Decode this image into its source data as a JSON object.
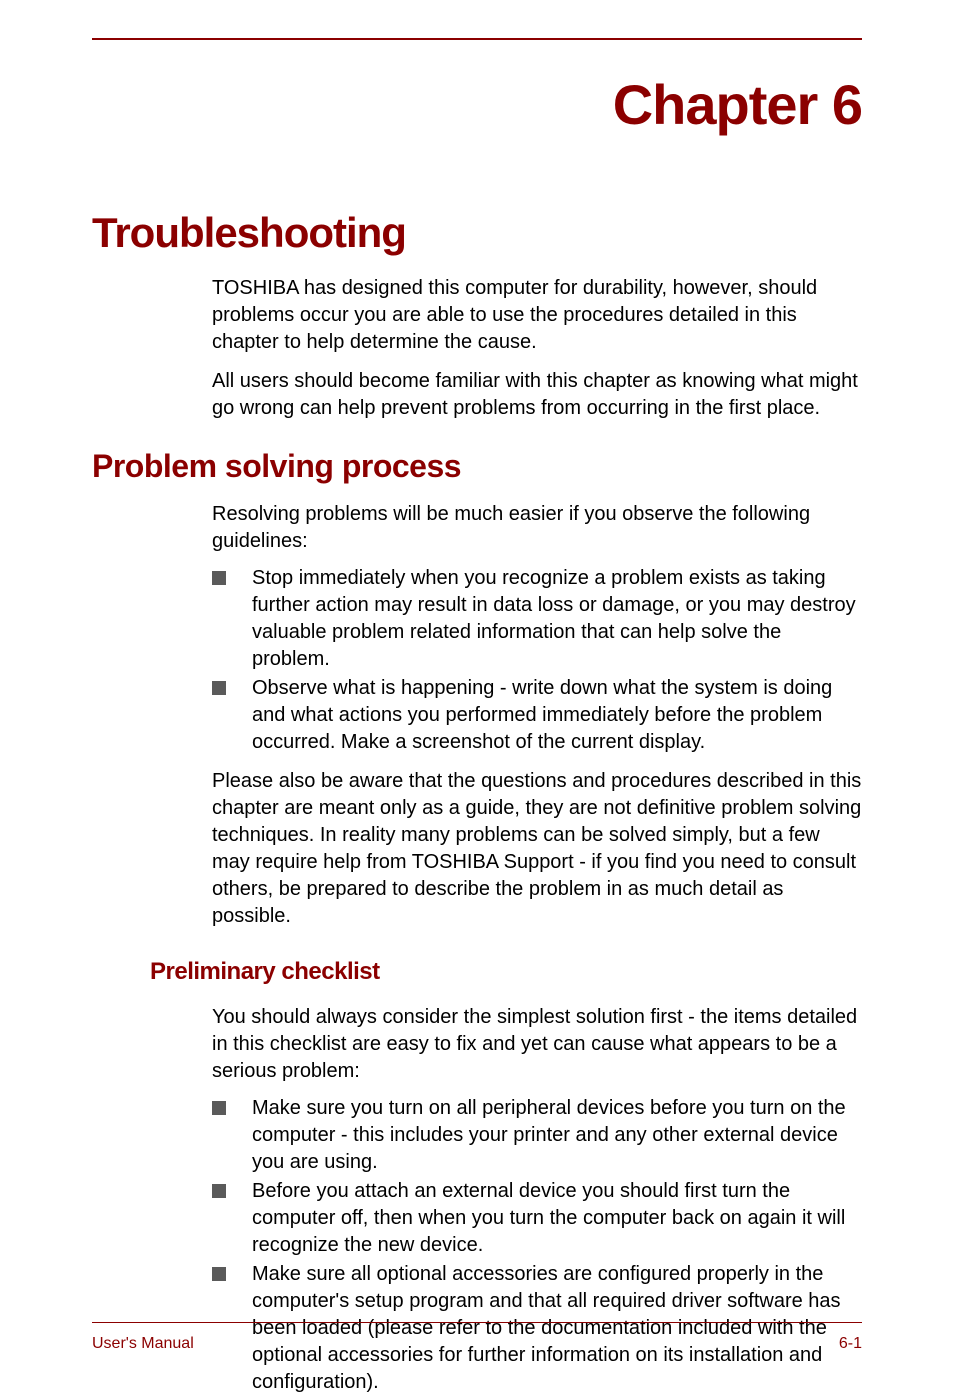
{
  "colors": {
    "heading": "#8b0000",
    "body_text": "#000000",
    "bullet_marker": "#5a5a5a",
    "rule": "#8b0000",
    "background": "#ffffff"
  },
  "typography": {
    "chapter_label_fontsize": 56,
    "h1_fontsize": 42,
    "h2_fontsize": 32,
    "h3_fontsize": 24,
    "body_fontsize": 20,
    "footer_fontsize": 16,
    "heading_font_weight": 900
  },
  "chapter": {
    "label": "Chapter 6"
  },
  "h1": "Troubleshooting",
  "intro": {
    "p1": "TOSHIBA has designed this computer for durability, however, should problems occur you are able to use the procedures detailed in this chapter to help determine the cause.",
    "p2": "All users should become familiar with this chapter as knowing what might go wrong can help prevent problems from occurring in the first place."
  },
  "section1": {
    "heading": "Problem solving process",
    "intro": "Resolving problems will be much easier if you observe the following guidelines:",
    "bullets": {
      "b1": "Stop immediately when you recognize a problem exists as taking further action may result in data loss or damage, or you may destroy valuable problem related information that can help solve the problem.",
      "b2": "Observe what is happening - write down what the system is doing and what actions you performed immediately before the problem occurred. Make a screenshot of the current display."
    },
    "after": "Please also be aware that the questions and procedures described in this chapter are meant only as a guide, they are not definitive problem solving techniques. In reality many problems can be solved simply, but a few may require help from TOSHIBA Support - if you find you need to consult others, be prepared to describe the problem in as much detail as possible."
  },
  "section2": {
    "heading": "Preliminary checklist",
    "intro": "You should always consider the simplest solution first - the items detailed in this checklist are easy to fix and yet can cause what appears to be a serious problem:",
    "bullets": {
      "b1": "Make sure you turn on all peripheral devices before you turn on the computer - this includes your printer and any other external device you are using.",
      "b2": "Before you attach an external device you should first turn the computer off, then when you turn the computer back on again it will recognize the new device.",
      "b3": "Make sure all optional accessories are configured properly in the computer's setup program and that all required driver software has been loaded (please refer to the documentation included with the optional accessories for further information on its installation and configuration)."
    }
  },
  "footer": {
    "left": "User's Manual",
    "right": "6-1"
  }
}
